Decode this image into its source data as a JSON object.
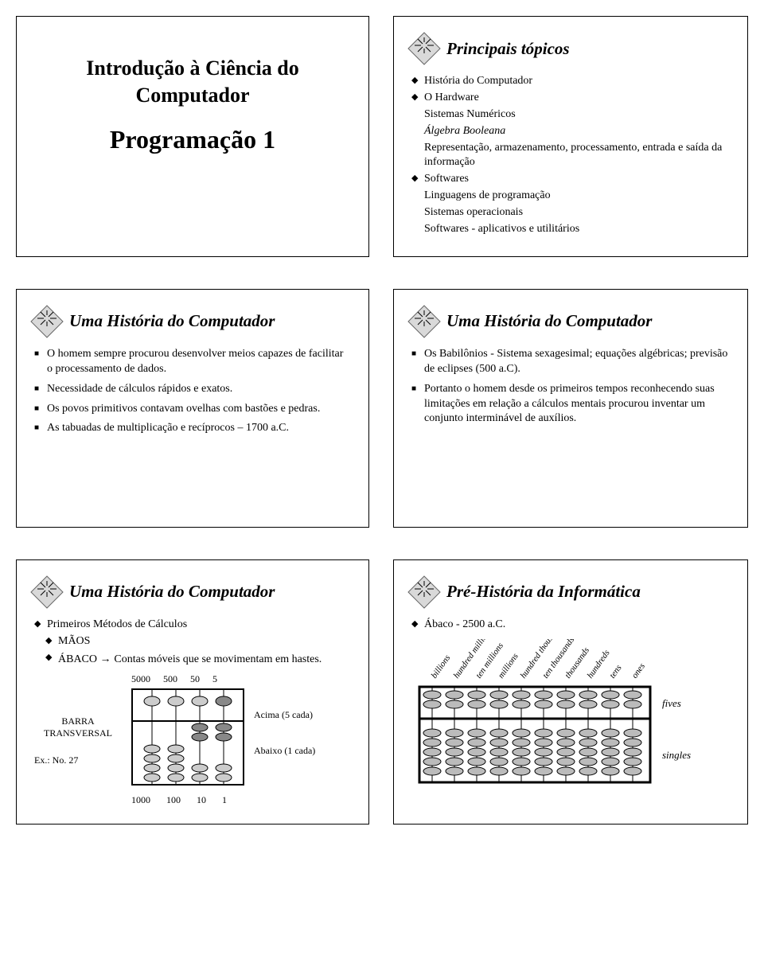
{
  "slide1": {
    "title1": "Introdução à Ciência do Computador",
    "title2": "Programação 1"
  },
  "slide2": {
    "heading": "Principais tópicos",
    "items": [
      "História do Computador",
      "O Hardware",
      "Sistemas Numéricos",
      "Álgebra Booleana",
      "Representação, armazenamento, processamento, entrada e saída da informação",
      "Softwares",
      "Linguagens de programação",
      "Sistemas operacionais",
      "Softwares - aplicativos e utilitários"
    ]
  },
  "slide3": {
    "heading": "Uma História do Computador",
    "bullets": [
      "O homem sempre procurou desenvolver meios capazes de facilitar o processamento de dados.",
      "Necessidade de cálculos rápidos e exatos.",
      "Os povos primitivos contavam ovelhas com bastões e pedras.",
      "As tabuadas de multiplicação e recíprocos – 1700 a.C."
    ]
  },
  "slide4": {
    "heading": "Uma História do Computador",
    "bullets": [
      "Os Babilônios - Sistema sexagesimal; equações algébricas; previsão de eclipses (500 a.C).",
      "Portanto o homem desde os primeiros tempos reconhecendo suas limitações em relação a cálculos mentais procurou inventar um conjunto interminável de auxílios."
    ]
  },
  "slide5": {
    "heading": "Uma História do Computador",
    "line1": "Primeiros Métodos de Cálculos",
    "line2": "MÃOS",
    "line3a": "ÁBACO",
    "line3b": "Contas móveis que se movimentam em hastes.",
    "topnums": [
      "5000",
      "500",
      "50",
      "5"
    ],
    "leftLabel1": "BARRA",
    "leftLabel2": "TRANSVERSAL",
    "leftLabel3": "Ex.:  No. 27",
    "rightLabel1": "Acima (5 cada)",
    "rightLabel2": "Abaixo (1 cada)",
    "botnums": [
      "1000",
      "100",
      "10",
      "1"
    ]
  },
  "slide6": {
    "heading": "Pré-História da Informática",
    "line1": "Ábaco  - 2500  a.C.",
    "cols": [
      "billions",
      "hundred millions",
      "ten millions",
      "millions",
      "hundred thousands",
      "ten thousands",
      "thousands",
      "hundreds",
      "tens",
      "ones"
    ],
    "rightTop": "fives",
    "rightBot": "singles"
  },
  "colors": {
    "diamond_fill": "#d9d9d9",
    "diamond_stroke": "#666666",
    "star_color": "#000000",
    "bead_fill": "#cccccc",
    "bead_stroke": "#000000",
    "frame": "#000000",
    "bg": "#ffffff"
  }
}
